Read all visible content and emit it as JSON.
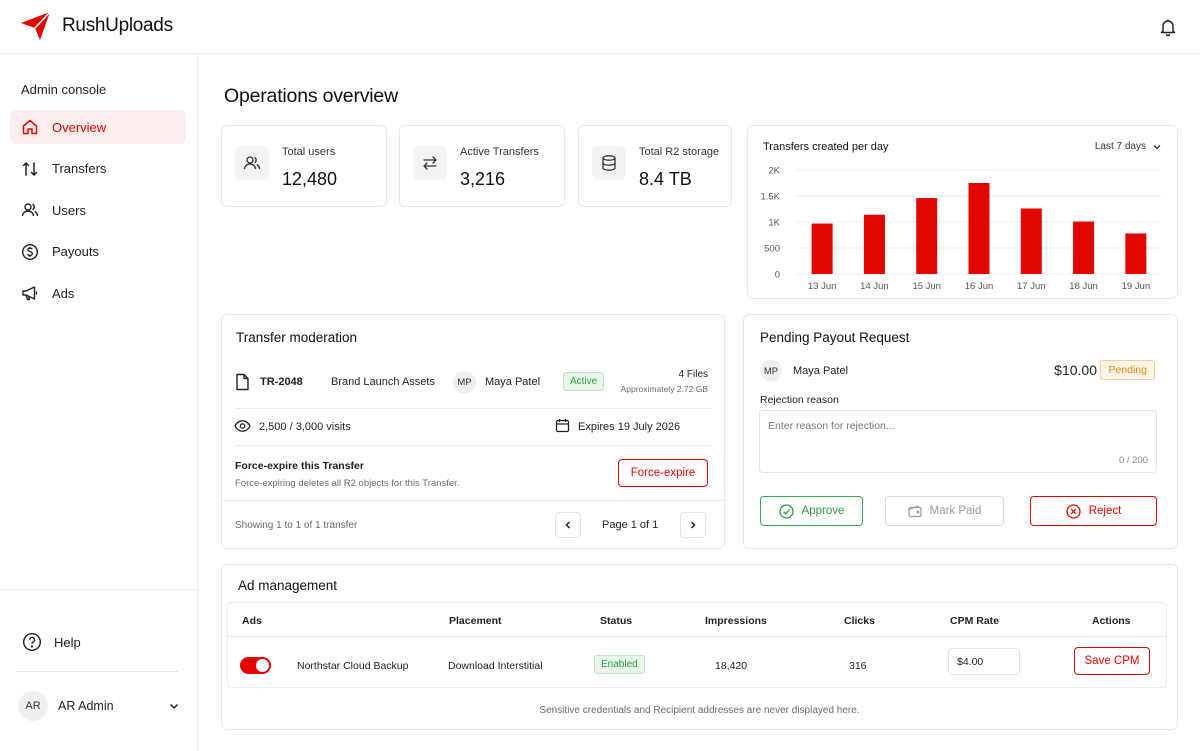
{
  "app": {
    "name": "RushUploads",
    "brand_color": "#e10600"
  },
  "sidebar": {
    "title": "Admin console",
    "items": [
      {
        "label": "Overview",
        "icon": "home-icon",
        "active": true
      },
      {
        "label": "Transfers",
        "icon": "arrows-up-down-icon"
      },
      {
        "label": "Users",
        "icon": "users-icon"
      },
      {
        "label": "Payouts",
        "icon": "dollar-circle-icon"
      },
      {
        "label": "Ads",
        "icon": "megaphone-icon"
      }
    ],
    "help_label": "Help",
    "user": {
      "initials": "AR",
      "name": "AR Admin"
    }
  },
  "main": {
    "title": "Operations overview",
    "stats": [
      {
        "label": "Total users",
        "value": "12,480",
        "icon": "users-icon"
      },
      {
        "label": "Active Transfers",
        "value": "3,216",
        "icon": "arrows-left-right-icon"
      },
      {
        "label": "Total R2 storage",
        "value": "8.4 TB",
        "icon": "database-icon"
      }
    ]
  },
  "chart_data": {
    "type": "bar",
    "title": "Transfers created per day",
    "range_label": "Last 7 days",
    "categories": [
      "13 Jun",
      "14 Jun",
      "15 Jun",
      "16 Jun",
      "17 Jun",
      "18 Jun",
      "19 Jun"
    ],
    "values": [
      970,
      1140,
      1460,
      1750,
      1260,
      1010,
      780
    ],
    "yticks": [
      "0",
      "500",
      "1K",
      "1.5K",
      "2K"
    ],
    "ylim": [
      0,
      2000
    ],
    "bar_color": "#e10600",
    "grid": true
  },
  "moderation": {
    "title": "Transfer moderation",
    "transfer_id": "TR-2048",
    "transfer_name": "Brand Launch Assets",
    "owner_initials": "MP",
    "owner_name": "Maya Patel",
    "status": "Active",
    "files": "4 Files",
    "size": "Approximately 2.72 GB",
    "visits": "2,500 / 3,000 visits",
    "expires": "Expires 19 July 2026",
    "force_title": "Force-expire this Transfer",
    "force_desc": "Force-expiring deletes all R2 objects for this Transfer.",
    "force_button": "Force-expire",
    "showing": "Showing 1 to 1 of 1 transfer",
    "page": "Page 1 of 1"
  },
  "payout": {
    "title": "Pending Payout Request",
    "initials": "MP",
    "name": "Maya Patel",
    "amount": "$10.00",
    "status": "Pending",
    "reason_label": "Rejection reason",
    "reason_placeholder": "Enter reason for rejection...",
    "char_count": "0 / 200",
    "approve": "Approve",
    "mark_paid": "Mark Paid",
    "reject": "Reject"
  },
  "ads": {
    "title": "Ad management",
    "headers": [
      "Ads",
      "Placement",
      "Status",
      "Impressions",
      "Clicks",
      "CPM Rate",
      "Actions"
    ],
    "row": {
      "enabled": true,
      "name": "Northstar Cloud Backup",
      "placement": "Download Interstitial",
      "status": "Enabled",
      "impressions": "18,420",
      "clicks": "316",
      "cpm": "$4.00",
      "action": "Save CPM"
    },
    "footnote": "Sensitive credentials and Recipient addresses are never displayed here."
  }
}
